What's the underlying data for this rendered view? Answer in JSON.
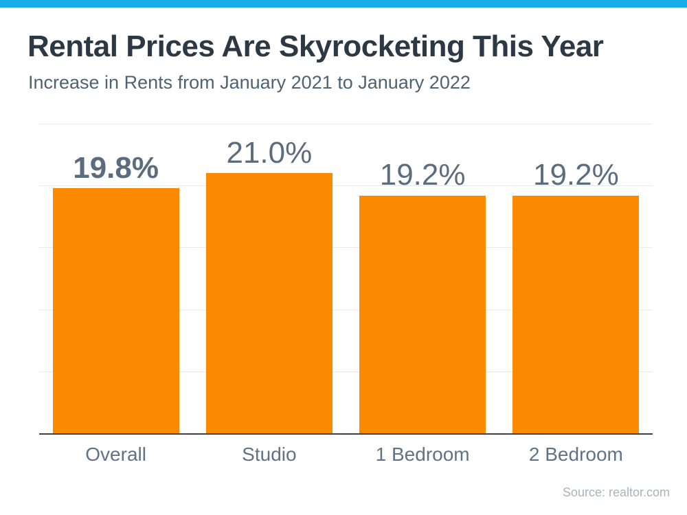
{
  "page": {
    "title": "Rental Prices Are Skyrocketing This Year",
    "subtitle": "Increase in Rents from January 2021 to January 2022",
    "source": "Source: realtor.com"
  },
  "colors": {
    "background": "#FFFFFF",
    "top_bar": "#17ABEA",
    "bar_fill": "#FB8A00",
    "title": "#2C3944",
    "subtitle": "#4D6373",
    "value_label": "#5A6C7E",
    "category_label": "#5F7384",
    "gridline": "#E7E9EB",
    "axis_line": "#3A4149",
    "source_text": "#A9B4BF"
  },
  "chart_data": {
    "type": "bar",
    "title": "Rental Prices Are Skyrocketing This Year",
    "subtitle": "Increase in Rents from January 2021 to January 2022",
    "categories": [
      "Overall",
      "Studio",
      "1 Bedroom",
      "2 Bedroom"
    ],
    "values": [
      19.8,
      21.0,
      19.2,
      19.2
    ],
    "value_labels": [
      "19.8%",
      "21.0%",
      "19.2%",
      "19.2%"
    ],
    "value_label_bold": [
      true,
      false,
      false,
      false
    ],
    "xlabel": "",
    "ylabel": "",
    "ylim": [
      0,
      25
    ],
    "gridline_interval": 5,
    "grid": true,
    "legend_position": "none",
    "bar_color": "#FB8A00",
    "source": "Source: realtor.com"
  }
}
